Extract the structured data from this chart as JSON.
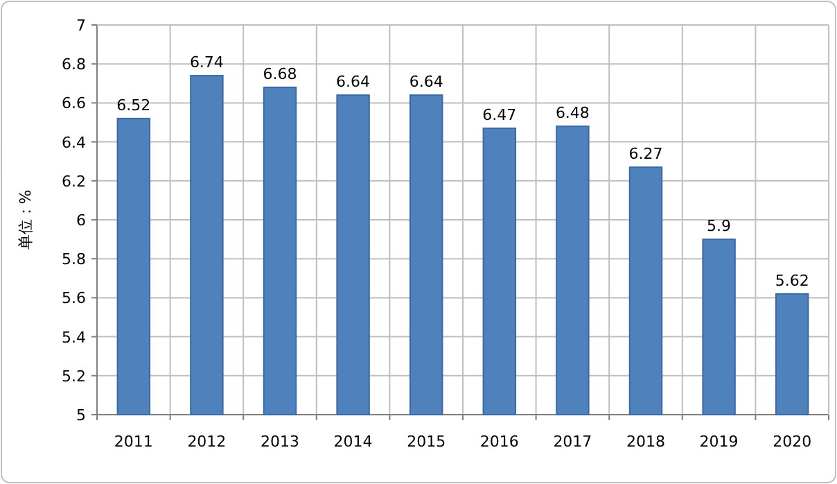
{
  "chart_data": {
    "type": "bar",
    "ylabel": "单位：%",
    "categories": [
      "2011",
      "2012",
      "2013",
      "2014",
      "2015",
      "2016",
      "2017",
      "2018",
      "2019",
      "2020"
    ],
    "values": [
      6.52,
      6.74,
      6.68,
      6.64,
      6.64,
      6.47,
      6.48,
      6.27,
      5.9,
      5.62
    ],
    "color": "#4f81bd",
    "ylim": [
      5,
      7
    ],
    "yticks": [
      5,
      5.2,
      5.4,
      5.6,
      5.8,
      6,
      6.2,
      6.4,
      6.6,
      6.8,
      7
    ],
    "grid": true,
    "data_labels": true
  }
}
